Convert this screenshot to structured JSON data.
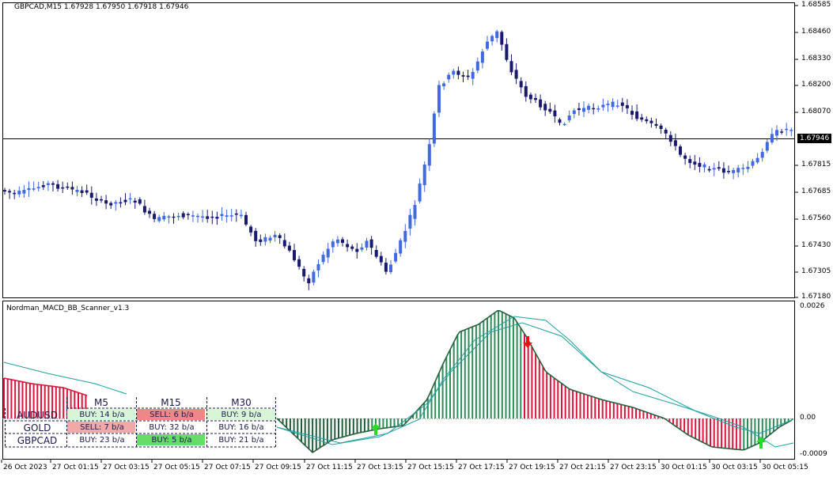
{
  "header": {
    "symbol_info": "GBPCAD,M15  1.67928 1.67950 1.67918 1.67946",
    "indicator_name": "Nordman_MACD_BB_Scanner_v1.3"
  },
  "colors": {
    "bull_candle": "#4169e1",
    "bear_candle": "#191970",
    "hist_up": "#2e8b57",
    "hist_up_dark": "#1f5c3a",
    "hist_down": "#dc143c",
    "band": "#20a0a0",
    "buy_bg": "#d8f5d8",
    "sell_bg": "#f2a8a8",
    "buy_strong_bg": "#66dd66",
    "sell_strong_bg": "#ee8888"
  },
  "price_axis": {
    "ticks": [
      "1.68585",
      "1.68460",
      "1.68330",
      "1.68200",
      "1.68070",
      "1.67815",
      "1.67685",
      "1.67560",
      "1.67430",
      "1.67305",
      "1.67180"
    ],
    "current_price": "1.67946"
  },
  "indicator_axis": {
    "ticks": [
      "0.0026",
      "0.00",
      "-0.0009"
    ]
  },
  "time_axis": {
    "ticks": [
      "26 Oct 2023",
      "27 Oct 01:15",
      "27 Oct 03:15",
      "27 Oct 05:15",
      "27 Oct 07:15",
      "27 Oct 09:15",
      "27 Oct 11:15",
      "27 Oct 13:15",
      "27 Oct 15:15",
      "27 Oct 17:15",
      "27 Oct 19:15",
      "27 Oct 21:15",
      "27 Oct 23:15",
      "30 Oct 01:15",
      "30 Oct 03:15",
      "30 Oct 05:15"
    ]
  },
  "scanner": {
    "timeframes": [
      "M5",
      "M15",
      "M30"
    ],
    "rows": [
      {
        "symbol": "AUDUSD",
        "cells": [
          {
            "text": "BUY: 14 b/a",
            "type": "buy"
          },
          {
            "text": "SELL: 6 b/a",
            "type": "sell_strong"
          },
          {
            "text": "BUY: 9 b/a",
            "type": "buy"
          }
        ]
      },
      {
        "symbol": "GOLD",
        "cells": [
          {
            "text": "SELL: 7 b/a",
            "type": "sell"
          },
          {
            "text": "BUY: 32 b/a",
            "type": "plain"
          },
          {
            "text": "BUY: 16 b/a",
            "type": "plain"
          }
        ]
      },
      {
        "symbol": "GBPCAD",
        "cells": [
          {
            "text": "BUY: 23 b/a",
            "type": "plain"
          },
          {
            "text": "BUY: 5 b/a",
            "type": "buy_strong"
          },
          {
            "text": "BUY: 21 b/a",
            "type": "plain"
          }
        ]
      }
    ]
  }
}
